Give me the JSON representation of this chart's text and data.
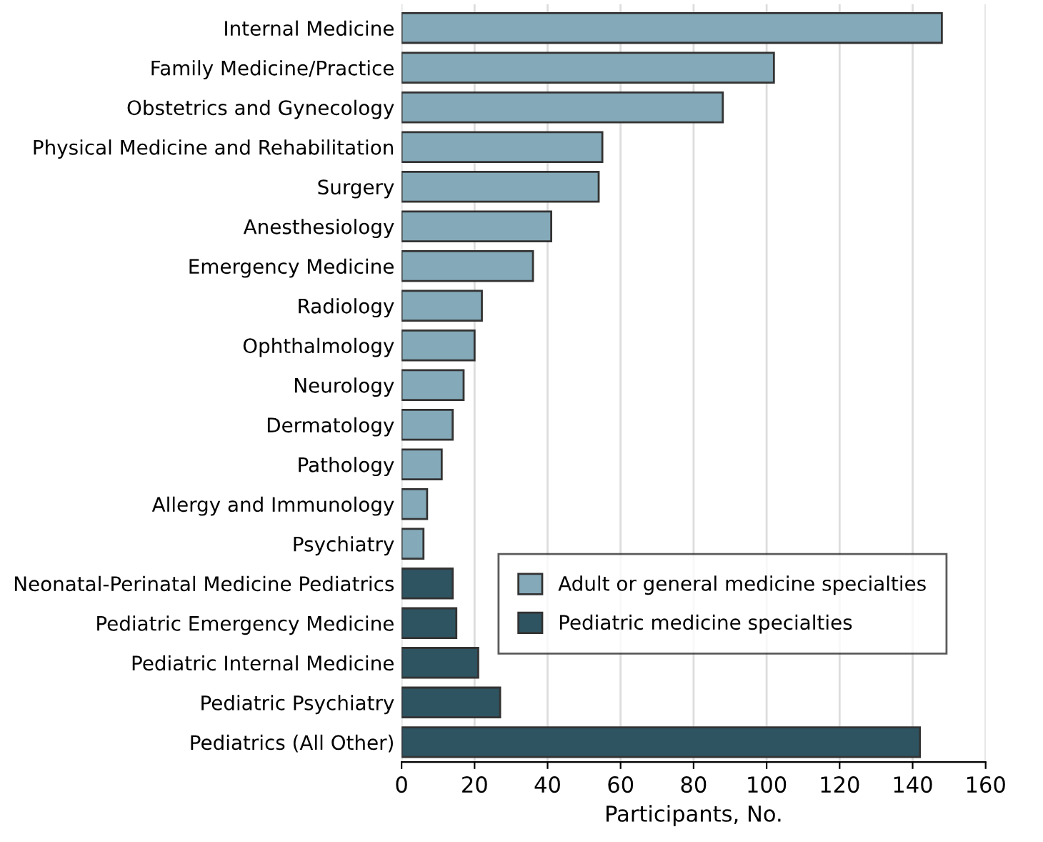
{
  "chart_data": {
    "type": "bar",
    "orientation": "horizontal",
    "xlabel": "Participants, No.",
    "categories": [
      "Internal Medicine",
      "Family Medicine/Practice",
      "Obstetrics and Gynecology",
      "Physical Medicine and Rehabilitation",
      "Surgery",
      "Anesthesiology",
      "Emergency Medicine",
      "Radiology",
      "Ophthalmology",
      "Neurology",
      "Dermatology",
      "Pathology",
      "Allergy and Immunology",
      "Psychiatry",
      "Neonatal-Perinatal Medicine Pediatrics",
      "Pediatric Emergency Medicine",
      "Pediatric Internal Medicine",
      "Pediatric Psychiatry",
      "Pediatrics (All Other)"
    ],
    "series": [
      {
        "name": "Adult or general medicine specialties",
        "color": "#84a9b8",
        "values": [
          148,
          102,
          88,
          55,
          54,
          41,
          36,
          22,
          20,
          17,
          14,
          11,
          7,
          6,
          null,
          null,
          null,
          null,
          null
        ]
      },
      {
        "name": "Pediatric medicine specialties",
        "color": "#2e5361",
        "values": [
          null,
          null,
          null,
          null,
          null,
          null,
          null,
          null,
          null,
          null,
          null,
          null,
          null,
          null,
          14,
          15,
          21,
          27,
          142
        ]
      }
    ],
    "xlim": [
      0,
      160
    ],
    "xticks": [
      0,
      20,
      40,
      60,
      80,
      100,
      120,
      140,
      160
    ],
    "grid": "x",
    "legend": "bottom right"
  }
}
